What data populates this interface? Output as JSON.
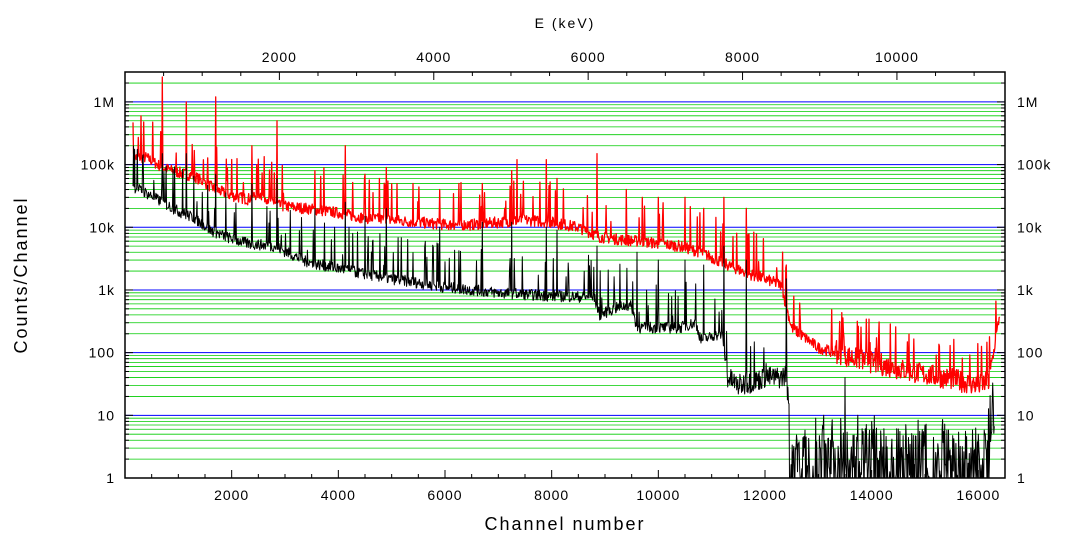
{
  "chart_data": {
    "type": "line",
    "title": "",
    "xlabel": "Channel number",
    "ylabel": "Counts/Channel",
    "x2label": "E (keV)",
    "xlim": [
      0,
      16500
    ],
    "ylim": [
      1,
      3000000
    ],
    "yscale": "log",
    "x2lim": [
      0,
      11400
    ],
    "x_ticks": [
      2000,
      4000,
      6000,
      8000,
      10000,
      12000,
      14000,
      16000
    ],
    "x_tick_labels": [
      "2000",
      "4000",
      "6000",
      "8000",
      "10000",
      "12000",
      "14000",
      "16000"
    ],
    "x2_ticks": [
      2000,
      4000,
      6000,
      8000,
      10000
    ],
    "x2_tick_labels": [
      "2000",
      "4000",
      "6000",
      "8000",
      "10000"
    ],
    "y_ticks": [
      1,
      10,
      100,
      1000,
      10000,
      100000,
      1000000
    ],
    "y_tick_labels": [
      "1",
      "10",
      "100",
      "1k",
      "10k",
      "100k",
      "1M"
    ],
    "grid": {
      "major_color": "#0000ff",
      "minor_color": "#00cc00",
      "on": true
    },
    "series": [
      {
        "color": "#ff0000",
        "x": [
          150,
          400,
          700,
          1000,
          1300,
          1700,
          2000,
          2300,
          2500,
          2900,
          3400,
          4000,
          4500,
          5000,
          5500,
          6000,
          6500,
          7000,
          7500,
          8000,
          8500,
          8900,
          9200,
          9600,
          10000,
          10400,
          10800,
          11100,
          11300,
          11700,
          12000,
          12300,
          12500,
          13000,
          13500,
          14000,
          14500,
          15000,
          15500,
          16000,
          16200,
          16400
        ],
        "y": [
          130000,
          130000,
          90000,
          75000,
          65000,
          40000,
          32000,
          28000,
          35000,
          22000,
          20000,
          17000,
          14000,
          13000,
          12000,
          11000,
          11000,
          12000,
          13000,
          12000,
          10000,
          7000,
          6500,
          6000,
          5500,
          5000,
          4000,
          3000,
          2500,
          1800,
          1500,
          1200,
          250,
          120,
          90,
          70,
          55,
          45,
          38,
          30,
          35,
          400
        ],
        "peaks": [
          [
            700,
            2500000
          ],
          [
            1150,
            1000000
          ],
          [
            1700,
            1200000
          ],
          [
            2380,
            200000
          ],
          [
            2850,
            500000
          ],
          [
            3560,
            80000
          ],
          [
            4130,
            200000
          ],
          [
            4500,
            70000
          ],
          [
            4900,
            90000
          ],
          [
            5400,
            50000
          ],
          [
            5900,
            40000
          ],
          [
            6700,
            50000
          ],
          [
            7250,
            80000
          ],
          [
            7350,
            120000
          ],
          [
            7900,
            120000
          ],
          [
            8100,
            60000
          ],
          [
            8850,
            150000
          ],
          [
            9400,
            40000
          ],
          [
            9700,
            30000
          ],
          [
            10000,
            30000
          ],
          [
            10500,
            30000
          ],
          [
            10850,
            20000
          ],
          [
            11230,
            30000
          ],
          [
            11650,
            20000
          ],
          [
            12400,
            2500
          ]
        ]
      },
      {
        "color": "#000000",
        "x": [
          150,
          400,
          700,
          1000,
          1300,
          1600,
          1900,
          2300,
          2800,
          3400,
          4000,
          4500,
          5000,
          5500,
          6000,
          6500,
          7000,
          7500,
          8000,
          8500,
          8800,
          8900,
          9300,
          9500,
          9600,
          10000,
          10400,
          10700,
          10800,
          11000,
          11200,
          11300,
          11500,
          11800,
          12000,
          12300,
          12400,
          12500,
          12700,
          13000,
          13500,
          14000,
          14500,
          15000,
          15500,
          16000,
          16300
        ],
        "y": [
          45000,
          35000,
          25000,
          18000,
          14000,
          9000,
          7000,
          5500,
          5000,
          2800,
          2200,
          1800,
          1500,
          1300,
          1100,
          1000,
          900,
          850,
          800,
          780,
          750,
          400,
          550,
          550,
          250,
          250,
          250,
          300,
          160,
          180,
          200,
          40,
          30,
          35,
          40,
          40,
          45,
          3,
          2,
          2,
          2,
          2,
          2,
          2,
          2,
          2,
          10
        ],
        "peaks": [
          [
            700,
            150000
          ],
          [
            1150,
            150000
          ],
          [
            1700,
            70000
          ],
          [
            2380,
            50000
          ],
          [
            2850,
            60000
          ],
          [
            3560,
            20000
          ],
          [
            4130,
            25000
          ],
          [
            4500,
            15000
          ],
          [
            4900,
            20000
          ],
          [
            5900,
            10000
          ],
          [
            6700,
            12000
          ],
          [
            7250,
            12000
          ],
          [
            7900,
            10000
          ],
          [
            8100,
            9000
          ],
          [
            8850,
            5000
          ],
          [
            9600,
            4000
          ],
          [
            10000,
            3000
          ],
          [
            10500,
            3000
          ],
          [
            10850,
            2500
          ],
          [
            11230,
            5000
          ],
          [
            11650,
            3000
          ],
          [
            12400,
            1500
          ],
          [
            13500,
            40
          ],
          [
            13100,
            10
          ],
          [
            14000,
            8
          ],
          [
            15000,
            7
          ],
          [
            16000,
            5
          ]
        ]
      }
    ]
  }
}
